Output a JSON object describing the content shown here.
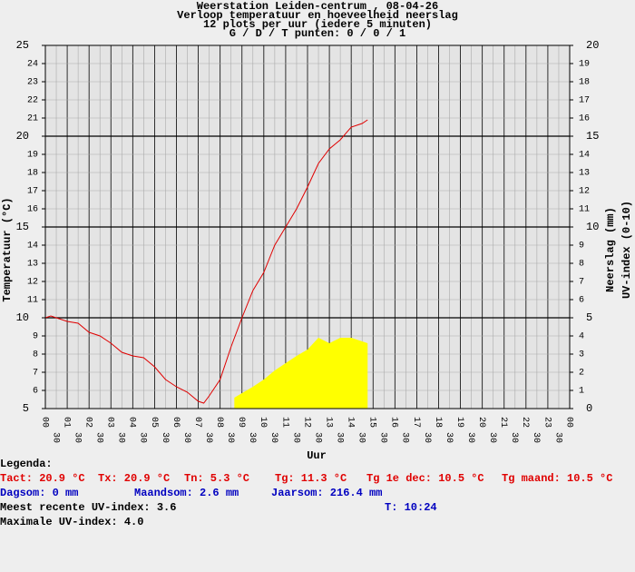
{
  "chart_data": {
    "type": "line",
    "title": [
      "Weerstation Leiden-centrum , 08-04-26",
      "Verloop temperatuur en hoeveelheid neerslag",
      "12 plots per uur (iedere 5 minuten)",
      "G / D / T punten: 0 / 0 / 1"
    ],
    "xlabel": "Uur",
    "ylabel": "Temperatuur (°C)",
    "y2label": [
      "Neerslag (mm)",
      "UV-index (0-10)"
    ],
    "xlim": [
      0,
      24
    ],
    "xticks": [
      {
        "value": 0,
        "label": "00"
      },
      {
        "value": 0.5,
        "label": "30"
      },
      {
        "value": 1,
        "label": "01"
      },
      {
        "value": 1.5,
        "label": "30"
      },
      {
        "value": 2,
        "label": "02"
      },
      {
        "value": 2.5,
        "label": "30"
      },
      {
        "value": 3,
        "label": "03"
      },
      {
        "value": 3.5,
        "label": "30"
      },
      {
        "value": 4,
        "label": "04"
      },
      {
        "value": 4.5,
        "label": "30"
      },
      {
        "value": 5,
        "label": "05"
      },
      {
        "value": 5.5,
        "label": "30"
      },
      {
        "value": 6,
        "label": "06"
      },
      {
        "value": 6.5,
        "label": "30"
      },
      {
        "value": 7,
        "label": "07"
      },
      {
        "value": 7.5,
        "label": "30"
      },
      {
        "value": 8,
        "label": "08"
      },
      {
        "value": 8.5,
        "label": "30"
      },
      {
        "value": 9,
        "label": "09"
      },
      {
        "value": 9.5,
        "label": "30"
      },
      {
        "value": 10,
        "label": "10"
      },
      {
        "value": 10.5,
        "label": "30"
      },
      {
        "value": 11,
        "label": "11"
      },
      {
        "value": 11.5,
        "label": "30"
      },
      {
        "value": 12,
        "label": "12"
      },
      {
        "value": 12.5,
        "label": "30"
      },
      {
        "value": 13,
        "label": "13"
      },
      {
        "value": 13.5,
        "label": "30"
      },
      {
        "value": 14,
        "label": "14"
      },
      {
        "value": 14.5,
        "label": "30"
      },
      {
        "value": 15,
        "label": "15"
      },
      {
        "value": 15.5,
        "label": "30"
      },
      {
        "value": 16,
        "label": "16"
      },
      {
        "value": 16.5,
        "label": "30"
      },
      {
        "value": 17,
        "label": "17"
      },
      {
        "value": 17.5,
        "label": "30"
      },
      {
        "value": 18,
        "label": "18"
      },
      {
        "value": 18.5,
        "label": "30"
      },
      {
        "value": 19,
        "label": "19"
      },
      {
        "value": 19.5,
        "label": "30"
      },
      {
        "value": 20,
        "label": "20"
      },
      {
        "value": 20.5,
        "label": "30"
      },
      {
        "value": 21,
        "label": "21"
      },
      {
        "value": 21.5,
        "label": "30"
      },
      {
        "value": 22,
        "label": "22"
      },
      {
        "value": 22.5,
        "label": "30"
      },
      {
        "value": 23,
        "label": "23"
      },
      {
        "value": 23.5,
        "label": "30"
      },
      {
        "value": 24,
        "label": "00"
      }
    ],
    "ylim": [
      5,
      25
    ],
    "yticks": [
      5,
      6,
      7,
      8,
      9,
      10,
      11,
      12,
      13,
      14,
      15,
      16,
      17,
      18,
      19,
      20,
      21,
      22,
      23,
      24,
      25
    ],
    "y2lim": [
      0,
      20
    ],
    "y2ticks": [
      0,
      1,
      2,
      3,
      4,
      5,
      6,
      7,
      8,
      9,
      10,
      11,
      12,
      13,
      14,
      15,
      16,
      17,
      18,
      19,
      20
    ],
    "grid": true,
    "series": [
      {
        "color": "#e00000",
        "x": [
          0,
          0.25,
          0.5,
          1,
          1.5,
          2,
          2.5,
          3,
          3.5,
          4,
          4.5,
          5,
          5.5,
          6,
          6.5,
          7,
          7.25,
          7.5,
          8,
          8.5,
          9,
          9.5,
          10,
          10.5,
          11,
          11.5,
          12,
          12.5,
          13,
          13.5,
          14,
          14.5,
          14.75
        ],
        "values": [
          10.0,
          10.1,
          10.0,
          9.8,
          9.7,
          9.2,
          9.0,
          8.6,
          8.1,
          7.9,
          7.8,
          7.3,
          6.6,
          6.2,
          5.9,
          5.4,
          5.3,
          5.7,
          6.6,
          8.4,
          10.0,
          11.5,
          12.5,
          14.0,
          15.0,
          16.0,
          17.2,
          18.5,
          19.3,
          19.8,
          20.5,
          20.7,
          20.9
        ]
      },
      {
        "color": "#ffff00",
        "axis": "y2",
        "x": [
          8.65,
          9,
          9.5,
          10,
          10.5,
          11,
          11.5,
          12,
          12.5,
          13,
          13.5,
          14,
          14.5,
          14.75
        ],
        "values": [
          0.6,
          0.85,
          1.2,
          1.6,
          2.1,
          2.5,
          2.9,
          3.25,
          3.9,
          3.6,
          3.9,
          3.9,
          3.7,
          3.6
        ]
      }
    ]
  },
  "legend": {
    "title": "Legenda:",
    "temperature": [
      "Tact: 20.9 °C",
      "Tx: 20.9 °C",
      "Tn: 5.3 °C",
      "Tg: 11.3 °C",
      "Tg 1e dec: 10.5 °C",
      "Tg maand: 10.5 °C"
    ],
    "rain": [
      "Dagsom: 0 mm",
      "Maandsom: 2.6 mm",
      "Jaarsom: 216.4 mm"
    ],
    "uv_recent": "Meest recente UV-index: 3.6",
    "uv_time": "T: 10:24",
    "uv_max": "Maximale UV-index: 4.0"
  }
}
